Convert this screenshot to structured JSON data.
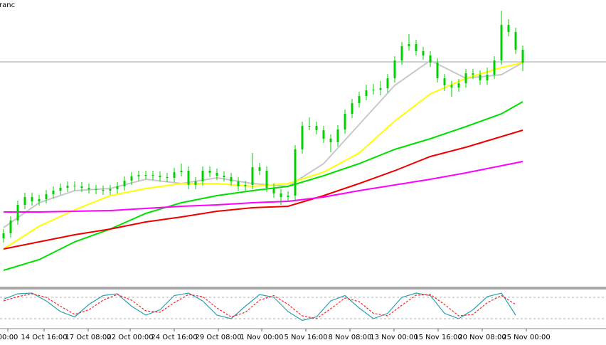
{
  "chart_data": [
    {
      "type": "candlestick",
      "title": "Franc",
      "x": [
        0,
        1,
        2,
        3,
        4,
        5,
        6,
        7,
        8,
        9,
        10,
        11,
        12,
        13,
        14,
        15,
        16,
        17,
        18,
        19,
        20,
        21,
        22,
        23,
        24,
        25,
        26,
        27,
        28,
        29,
        30,
        31,
        32,
        33,
        34,
        35,
        36,
        37,
        38,
        39,
        40,
        41,
        42,
        43,
        44,
        45,
        46,
        47,
        48,
        49,
        50,
        51,
        52,
        53,
        54,
        55,
        56,
        57,
        58,
        59,
        60,
        61,
        62,
        63,
        64,
        65,
        66,
        67,
        68,
        69,
        70,
        71,
        72,
        73
      ],
      "open": [
        65,
        72,
        90,
        112,
        123,
        117,
        120,
        127,
        132,
        136,
        139,
        138,
        136,
        134,
        133,
        132,
        134,
        138,
        146,
        152,
        154,
        154,
        153,
        151,
        150,
        158,
        160,
        140,
        145,
        160,
        157,
        153,
        151,
        145,
        138,
        140,
        165,
        160,
        136,
        128,
        123,
        125,
        190,
        223,
        223,
        217,
        205,
        200,
        218,
        240,
        255,
        265,
        273,
        274,
        276,
        290,
        315,
        335,
        338,
        328,
        322,
        312,
        290,
        280,
        277,
        283,
        297,
        295,
        287,
        295,
        315,
        365,
        355,
        330
      ],
      "high": [
        78,
        96,
        118,
        129,
        129,
        126,
        133,
        138,
        142,
        145,
        145,
        144,
        142,
        140,
        139,
        140,
        144,
        152,
        158,
        160,
        160,
        160,
        159,
        157,
        164,
        170,
        166,
        151,
        166,
        166,
        163,
        159,
        157,
        151,
        146,
        185,
        171,
        166,
        142,
        134,
        131,
        196,
        229,
        235,
        229,
        223,
        211,
        224,
        246,
        261,
        271,
        281,
        282,
        286,
        296,
        321,
        341,
        352,
        344,
        334,
        328,
        318,
        296,
        286,
        289,
        303,
        303,
        301,
        305,
        321,
        385,
        373,
        361,
        336
      ],
      "low": [
        59,
        66,
        84,
        106,
        111,
        111,
        114,
        121,
        126,
        130,
        132,
        130,
        128,
        127,
        126,
        126,
        128,
        132,
        140,
        146,
        148,
        147,
        145,
        144,
        144,
        152,
        134,
        134,
        139,
        151,
        147,
        145,
        139,
        132,
        132,
        134,
        154,
        130,
        122,
        112,
        117,
        119,
        184,
        217,
        211,
        199,
        186,
        194,
        212,
        234,
        249,
        259,
        267,
        266,
        270,
        284,
        309,
        329,
        322,
        316,
        306,
        284,
        272,
        264,
        271,
        277,
        289,
        281,
        281,
        289,
        309,
        349,
        324,
        300
      ],
      "close": [
        72,
        90,
        112,
        123,
        117,
        120,
        127,
        132,
        136,
        139,
        138,
        136,
        134,
        133,
        132,
        134,
        138,
        146,
        152,
        154,
        154,
        153,
        151,
        150,
        158,
        160,
        140,
        145,
        160,
        157,
        153,
        151,
        145,
        138,
        140,
        165,
        160,
        136,
        128,
        123,
        125,
        190,
        223,
        223,
        217,
        205,
        200,
        218,
        240,
        255,
        265,
        273,
        274,
        276,
        290,
        315,
        335,
        338,
        328,
        322,
        312,
        290,
        280,
        277,
        283,
        297,
        295,
        287,
        295,
        315,
        365,
        355,
        330,
        312
      ],
      "color": "#00d000",
      "lines": [
        {
          "color": "#c8c8c8",
          "x": [
            0,
            5,
            10,
            15,
            20,
            25,
            30,
            35,
            40,
            45,
            50,
            55,
            60,
            65,
            70,
            73
          ],
          "values": [
            80,
            115,
            132,
            135,
            148,
            142,
            150,
            142,
            138,
            170,
            225,
            280,
            315,
            290,
            295,
            312
          ]
        },
        {
          "color": "#ffff00",
          "x": [
            0,
            5,
            10,
            15,
            20,
            25,
            30,
            35,
            40,
            45,
            50,
            55,
            60,
            65,
            70,
            73
          ],
          "values": [
            50,
            82,
            105,
            125,
            135,
            142,
            142,
            138,
            142,
            158,
            185,
            230,
            268,
            290,
            305,
            312
          ]
        },
        {
          "color": "#00e000",
          "x": [
            0,
            5,
            10,
            15,
            20,
            25,
            30,
            35,
            40,
            45,
            50,
            55,
            60,
            65,
            70,
            73
          ],
          "values": [
            20,
            35,
            60,
            78,
            100,
            115,
            125,
            132,
            138,
            153,
            170,
            190,
            205,
            222,
            240,
            257
          ]
        },
        {
          "color": "#ee0000",
          "x": [
            0,
            5,
            10,
            15,
            20,
            25,
            30,
            35,
            40,
            45,
            50,
            55,
            60,
            65,
            70,
            73
          ],
          "values": [
            50,
            60,
            70,
            78,
            88,
            95,
            103,
            108,
            110,
            125,
            142,
            160,
            180,
            193,
            208,
            217
          ]
        },
        {
          "color": "#ff00ff",
          "x": [
            0,
            5,
            10,
            15,
            20,
            25,
            30,
            35,
            40,
            45,
            50,
            55,
            60,
            65,
            70,
            73
          ],
          "values": [
            102,
            102,
            103,
            104,
            107,
            110,
            112,
            115,
            117,
            123,
            132,
            140,
            148,
            157,
            167,
            173
          ]
        }
      ],
      "hline": 313,
      "hline_color": "#9aa4ae",
      "xlim": [
        -0.5,
        84.7
      ],
      "ylim": [
        0,
        400
      ],
      "grid": false
    },
    {
      "type": "line",
      "x": [
        0,
        2,
        4,
        6,
        8,
        10,
        12,
        14,
        16,
        18,
        20,
        22,
        24,
        26,
        28,
        30,
        32,
        34,
        36,
        38,
        40,
        42,
        44,
        46,
        48,
        50,
        52,
        54,
        56,
        58,
        60,
        62,
        64,
        66,
        68,
        70,
        72
      ],
      "series": [
        {
          "color": "#2aa0b0",
          "dash": false,
          "values": [
            75,
            90,
            92,
            70,
            40,
            25,
            60,
            85,
            90,
            55,
            30,
            45,
            85,
            92,
            70,
            30,
            20,
            55,
            88,
            80,
            40,
            15,
            25,
            70,
            85,
            50,
            20,
            35,
            80,
            92,
            85,
            35,
            20,
            45,
            82,
            92,
            30
          ]
        },
        {
          "color": "#ff2020",
          "dash": true,
          "values": [
            70,
            82,
            90,
            80,
            55,
            32,
            45,
            72,
            88,
            72,
            42,
            38,
            65,
            88,
            82,
            50,
            25,
            38,
            72,
            85,
            60,
            28,
            20,
            48,
            78,
            68,
            35,
            28,
            58,
            86,
            88,
            60,
            28,
            32,
            65,
            85,
            60
          ]
        }
      ],
      "levels": [
        80,
        20
      ],
      "xlim": [
        -0.5,
        84.7
      ],
      "ylim": [
        0,
        100
      ],
      "xticks": [
        {
          "value": 0.6,
          "label": "00:00"
        },
        {
          "value": 5.7,
          "label": "14 Oct 16:00"
        },
        {
          "value": 11.9,
          "label": "17 Oct 08:00"
        },
        {
          "value": 17.8,
          "label": "22 Oct 00:00"
        },
        {
          "value": 24,
          "label": "24 Oct 16:00"
        },
        {
          "value": 30.2,
          "label": "29 Oct 08:00"
        },
        {
          "value": 36.3,
          "label": "1 Nov 00:00"
        },
        {
          "value": 42.5,
          "label": "5 Nov 16:00"
        },
        {
          "value": 48.7,
          "label": "8 Nov 08:00"
        },
        {
          "value": 54.9,
          "label": "13 Nov 00:00"
        },
        {
          "value": 61.1,
          "label": "15 Nov 16:00"
        },
        {
          "value": 67.3,
          "label": "20 Nov 08:00"
        },
        {
          "value": 73.5,
          "label": "25 Nov 00:00"
        }
      ],
      "grid": false
    }
  ]
}
